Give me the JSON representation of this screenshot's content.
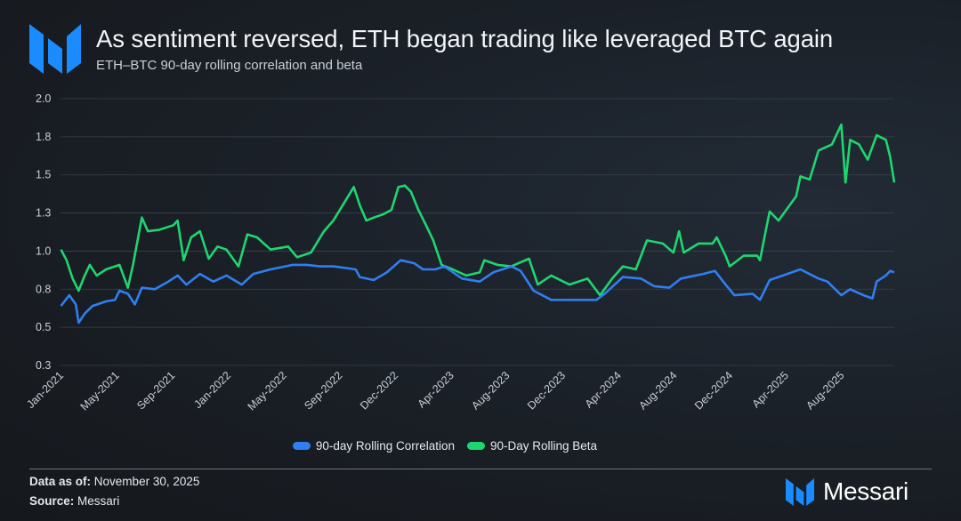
{
  "header": {
    "title": "As sentiment reversed, ETH began trading like leveraged BTC again",
    "subtitle": "ETH–BTC 90-day rolling correlation and beta",
    "logo_text": "Messari"
  },
  "footer": {
    "data_as_of_label": "Data as of:",
    "data_as_of_value": "November 30, 2025",
    "source_label": "Source:",
    "source_value": "Messari",
    "brand_name": "Messari"
  },
  "colors": {
    "brand": "#1a8cff",
    "correlation": "#2f7ff0",
    "beta": "#1ed66f",
    "background": "#1a1f26"
  },
  "chart_data": {
    "type": "line",
    "title": "As sentiment reversed, ETH began trading like leveraged BTC again",
    "subtitle": "ETH–BTC 90-day rolling correlation and beta",
    "xlabel": "",
    "ylabel": "",
    "xlim": [
      "2021-01-01",
      "2025-11-30"
    ],
    "ylim": [
      0.25,
      2.0
    ],
    "y_ticks": [
      0.25,
      0.5,
      0.75,
      1.0,
      1.25,
      1.5,
      1.75,
      2.0
    ],
    "y_tick_labels": [
      "0.3",
      "0.5",
      "0.8",
      "1.0",
      "1.3",
      "1.5",
      "1.8",
      "2.0"
    ],
    "x_tick_labels": [
      "Jan-2021",
      "May-2021",
      "Sep-2021",
      "Jan-2022",
      "May-2022",
      "Sep-2022",
      "Dec-2022",
      "Apr-2023",
      "Aug-2023",
      "Dec-2023",
      "Apr-2024",
      "Aug-2024",
      "Dec-2024",
      "Apr-2025",
      "Aug-2025"
    ],
    "grid": "horizontal",
    "legend_position": "bottom",
    "series": [
      {
        "name": "90-day Rolling Correlation",
        "color": "#2f7ff0",
        "points": [
          [
            "2021-01-02",
            0.64
          ],
          [
            "2021-01-20",
            0.71
          ],
          [
            "2021-02-03",
            0.65
          ],
          [
            "2021-02-09",
            0.53
          ],
          [
            "2021-02-22",
            0.59
          ],
          [
            "2021-03-11",
            0.64
          ],
          [
            "2021-04-09",
            0.67
          ],
          [
            "2021-04-28",
            0.68
          ],
          [
            "2021-05-08",
            0.74
          ],
          [
            "2021-05-26",
            0.72
          ],
          [
            "2021-06-10",
            0.65
          ],
          [
            "2021-06-25",
            0.76
          ],
          [
            "2021-07-23",
            0.75
          ],
          [
            "2021-08-21",
            0.8
          ],
          [
            "2021-09-10",
            0.84
          ],
          [
            "2021-09-29",
            0.78
          ],
          [
            "2021-10-28",
            0.85
          ],
          [
            "2021-11-26",
            0.8
          ],
          [
            "2021-12-24",
            0.84
          ],
          [
            "2022-01-26",
            0.78
          ],
          [
            "2022-02-20",
            0.85
          ],
          [
            "2022-03-29",
            0.88
          ],
          [
            "2022-05-16",
            0.91
          ],
          [
            "2022-06-14",
            0.91
          ],
          [
            "2022-07-13",
            0.9
          ],
          [
            "2022-08-11",
            0.9
          ],
          [
            "2022-09-28",
            0.88
          ],
          [
            "2022-10-07",
            0.83
          ],
          [
            "2022-11-06",
            0.81
          ],
          [
            "2022-12-04",
            0.86
          ],
          [
            "2023-01-03",
            0.94
          ],
          [
            "2023-02-01",
            0.92
          ],
          [
            "2023-02-20",
            0.88
          ],
          [
            "2023-03-18",
            0.88
          ],
          [
            "2023-04-07",
            0.9
          ],
          [
            "2023-05-15",
            0.82
          ],
          [
            "2023-06-22",
            0.8
          ],
          [
            "2023-07-21",
            0.86
          ],
          [
            "2023-08-29",
            0.9
          ],
          [
            "2023-09-18",
            0.87
          ],
          [
            "2023-10-16",
            0.74
          ],
          [
            "2023-11-23",
            0.68
          ],
          [
            "2024-01-01",
            0.68
          ],
          [
            "2024-02-28",
            0.68
          ],
          [
            "2024-03-17",
            0.72
          ],
          [
            "2024-04-25",
            0.83
          ],
          [
            "2024-06-03",
            0.82
          ],
          [
            "2024-07-01",
            0.77
          ],
          [
            "2024-08-03",
            0.76
          ],
          [
            "2024-08-28",
            0.82
          ],
          [
            "2024-10-15",
            0.85
          ],
          [
            "2024-11-09",
            0.87
          ],
          [
            "2024-12-02",
            0.78
          ],
          [
            "2024-12-21",
            0.71
          ],
          [
            "2025-01-29",
            0.72
          ],
          [
            "2025-02-14",
            0.68
          ],
          [
            "2025-03-07",
            0.81
          ],
          [
            "2025-04-14",
            0.85
          ],
          [
            "2025-05-12",
            0.88
          ],
          [
            "2025-06-20",
            0.82
          ],
          [
            "2025-07-09",
            0.8
          ],
          [
            "2025-08-08",
            0.71
          ],
          [
            "2025-08-27",
            0.75
          ],
          [
            "2025-09-25",
            0.71
          ],
          [
            "2025-10-14",
            0.69
          ],
          [
            "2025-10-23",
            0.8
          ],
          [
            "2025-11-12",
            0.84
          ],
          [
            "2025-11-21",
            0.87
          ],
          [
            "2025-11-30",
            0.86
          ]
        ]
      },
      {
        "name": "90-Day Rolling Beta",
        "color": "#1ed66f",
        "points": [
          [
            "2021-01-02",
            1.01
          ],
          [
            "2021-01-14",
            0.94
          ],
          [
            "2021-01-27",
            0.82
          ],
          [
            "2021-02-09",
            0.74
          ],
          [
            "2021-02-22",
            0.84
          ],
          [
            "2021-03-05",
            0.91
          ],
          [
            "2021-03-20",
            0.84
          ],
          [
            "2021-04-09",
            0.88
          ],
          [
            "2021-05-08",
            0.91
          ],
          [
            "2021-05-26",
            0.76
          ],
          [
            "2021-06-06",
            0.91
          ],
          [
            "2021-06-25",
            1.22
          ],
          [
            "2021-07-08",
            1.13
          ],
          [
            "2021-08-02",
            1.14
          ],
          [
            "2021-09-01",
            1.17
          ],
          [
            "2021-09-10",
            1.2
          ],
          [
            "2021-09-23",
            0.94
          ],
          [
            "2021-10-09",
            1.09
          ],
          [
            "2021-10-28",
            1.13
          ],
          [
            "2021-11-16",
            0.95
          ],
          [
            "2021-12-05",
            1.03
          ],
          [
            "2021-12-24",
            1.01
          ],
          [
            "2022-01-19",
            0.9
          ],
          [
            "2022-02-07",
            1.11
          ],
          [
            "2022-02-28",
            1.09
          ],
          [
            "2022-03-29",
            1.01
          ],
          [
            "2022-05-06",
            1.03
          ],
          [
            "2022-05-25",
            0.96
          ],
          [
            "2022-06-24",
            0.99
          ],
          [
            "2022-07-22",
            1.13
          ],
          [
            "2022-08-11",
            1.2
          ],
          [
            "2022-09-24",
            1.42
          ],
          [
            "2022-10-07",
            1.3
          ],
          [
            "2022-10-21",
            1.2
          ],
          [
            "2022-11-06",
            1.22
          ],
          [
            "2022-11-25",
            1.24
          ],
          [
            "2022-12-14",
            1.27
          ],
          [
            "2022-12-29",
            1.42
          ],
          [
            "2023-01-12",
            1.43
          ],
          [
            "2023-01-25",
            1.39
          ],
          [
            "2023-02-10",
            1.27
          ],
          [
            "2023-02-28",
            1.16
          ],
          [
            "2023-03-14",
            1.07
          ],
          [
            "2023-04-01",
            0.91
          ],
          [
            "2023-04-25",
            0.88
          ],
          [
            "2023-05-24",
            0.84
          ],
          [
            "2023-06-22",
            0.86
          ],
          [
            "2023-07-02",
            0.94
          ],
          [
            "2023-07-30",
            0.91
          ],
          [
            "2023-08-29",
            0.9
          ],
          [
            "2023-10-06",
            0.95
          ],
          [
            "2023-10-25",
            0.78
          ],
          [
            "2023-11-23",
            0.84
          ],
          [
            "2024-01-01",
            0.78
          ],
          [
            "2024-02-09",
            0.82
          ],
          [
            "2024-03-07",
            0.71
          ],
          [
            "2024-04-02",
            0.82
          ],
          [
            "2024-04-25",
            0.9
          ],
          [
            "2024-05-23",
            0.88
          ],
          [
            "2024-06-16",
            1.07
          ],
          [
            "2024-07-20",
            1.05
          ],
          [
            "2024-08-12",
            0.99
          ],
          [
            "2024-08-24",
            1.13
          ],
          [
            "2024-09-03",
            0.99
          ],
          [
            "2024-10-05",
            1.05
          ],
          [
            "2024-11-04",
            1.05
          ],
          [
            "2024-11-13",
            1.09
          ],
          [
            "2024-12-02",
            0.97
          ],
          [
            "2024-12-11",
            0.9
          ],
          [
            "2025-01-10",
            0.97
          ],
          [
            "2025-02-08",
            0.97
          ],
          [
            "2025-02-14",
            0.94
          ],
          [
            "2025-02-27",
            1.14
          ],
          [
            "2025-03-07",
            1.26
          ],
          [
            "2025-03-26",
            1.2
          ],
          [
            "2025-04-14",
            1.28
          ],
          [
            "2025-05-03",
            1.36
          ],
          [
            "2025-05-12",
            1.49
          ],
          [
            "2025-06-01",
            1.47
          ],
          [
            "2025-06-20",
            1.66
          ],
          [
            "2025-07-19",
            1.7
          ],
          [
            "2025-08-08",
            1.83
          ],
          [
            "2025-08-17",
            1.45
          ],
          [
            "2025-08-27",
            1.73
          ],
          [
            "2025-09-15",
            1.7
          ],
          [
            "2025-10-04",
            1.6
          ],
          [
            "2025-10-23",
            1.76
          ],
          [
            "2025-11-12",
            1.73
          ],
          [
            "2025-11-21",
            1.62
          ],
          [
            "2025-11-30",
            1.45
          ]
        ]
      }
    ]
  }
}
